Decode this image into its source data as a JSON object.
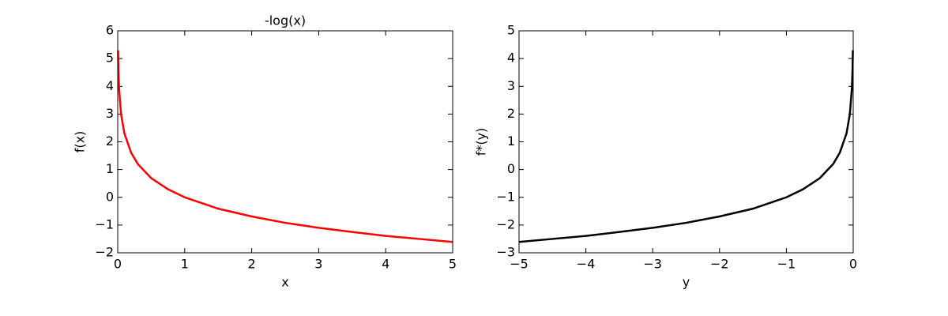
{
  "chart_data": [
    {
      "type": "line",
      "title": "-log(x)",
      "xlabel": "x",
      "ylabel": "f(x)",
      "x": [
        0.005,
        0.01,
        0.02,
        0.05,
        0.1,
        0.2,
        0.3,
        0.5,
        0.75,
        1,
        1.5,
        2,
        2.5,
        3,
        3.5,
        4,
        4.5,
        5
      ],
      "values": [
        5.3,
        4.61,
        3.91,
        3.0,
        2.3,
        1.61,
        1.2,
        0.69,
        0.29,
        0,
        -0.41,
        -0.69,
        -0.92,
        -1.1,
        -1.25,
        -1.39,
        -1.5,
        -1.61
      ],
      "color": "#ff0000",
      "xlim": [
        0,
        5
      ],
      "xticks": [
        0,
        1,
        2,
        3,
        4,
        5
      ],
      "ylim": [
        -2,
        6
      ],
      "yticks": [
        {
          "value": -2,
          "label": "−2"
        },
        {
          "value": -1,
          "label": "−1"
        },
        0,
        1,
        2,
        3,
        4,
        5,
        6
      ]
    },
    {
      "type": "line",
      "xlabel": "y",
      "ylabel": "f*(y)",
      "x": [
        -5,
        -4.5,
        -4,
        -3.5,
        -3,
        -2.5,
        -2,
        -1.5,
        -1,
        -0.75,
        -0.5,
        -0.3,
        -0.2,
        -0.1,
        -0.05,
        -0.02,
        -0.01,
        -0.005
      ],
      "values": [
        -2.61,
        -2.5,
        -2.39,
        -2.25,
        -2.1,
        -1.92,
        -1.69,
        -1.41,
        -1,
        -0.71,
        -0.31,
        0.2,
        0.61,
        1.3,
        2.0,
        2.91,
        3.61,
        4.3
      ],
      "color": "#000000",
      "xlim": [
        -5,
        0
      ],
      "xticks": [
        {
          "value": -5,
          "label": "−5"
        },
        {
          "value": -4,
          "label": "−4"
        },
        {
          "value": -3,
          "label": "−3"
        },
        {
          "value": -2,
          "label": "−2"
        },
        {
          "value": -1,
          "label": "−1"
        },
        0
      ],
      "ylim": [
        -3,
        5
      ],
      "yticks": [
        {
          "value": -3,
          "label": "−3"
        },
        {
          "value": -2,
          "label": "−2"
        },
        {
          "value": -1,
          "label": "−1"
        },
        0,
        1,
        2,
        3,
        4,
        5
      ]
    }
  ]
}
